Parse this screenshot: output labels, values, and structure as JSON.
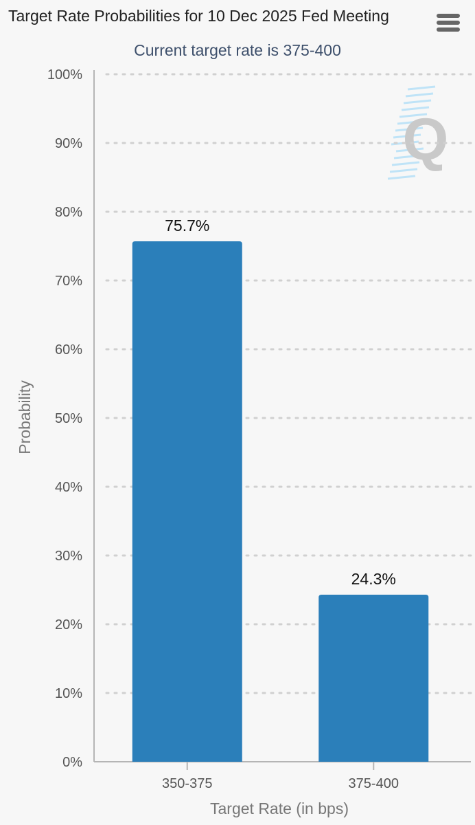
{
  "header": {
    "title": "Target Rate Probabilities for 10 Dec 2025 Fed Meeting",
    "subtitle": "Current target rate is 375-400",
    "menu_icon": "hamburger-menu-icon"
  },
  "watermark": {
    "icon": "q-logo-icon"
  },
  "colors": {
    "bar": "#2b7fba",
    "grid": "#d0d0d0",
    "axis": "#b5b5b5"
  },
  "chart_data": {
    "type": "bar",
    "title": "Target Rate Probabilities for 10 Dec 2025 Fed Meeting",
    "subtitle": "Current target rate is 375-400",
    "xlabel": "Target Rate (in bps)",
    "ylabel": "Probability",
    "categories": [
      "350-375",
      "375-400"
    ],
    "values": [
      75.7,
      24.3
    ],
    "data_labels": [
      "75.7%",
      "24.3%"
    ],
    "ylim": [
      0,
      100
    ],
    "yticks": [
      0,
      10,
      20,
      30,
      40,
      50,
      60,
      70,
      80,
      90,
      100
    ],
    "ytick_labels": [
      "0%",
      "10%",
      "20%",
      "30%",
      "40%",
      "50%",
      "60%",
      "70%",
      "80%",
      "90%",
      "100%"
    ],
    "grid": true,
    "legend": "none"
  }
}
